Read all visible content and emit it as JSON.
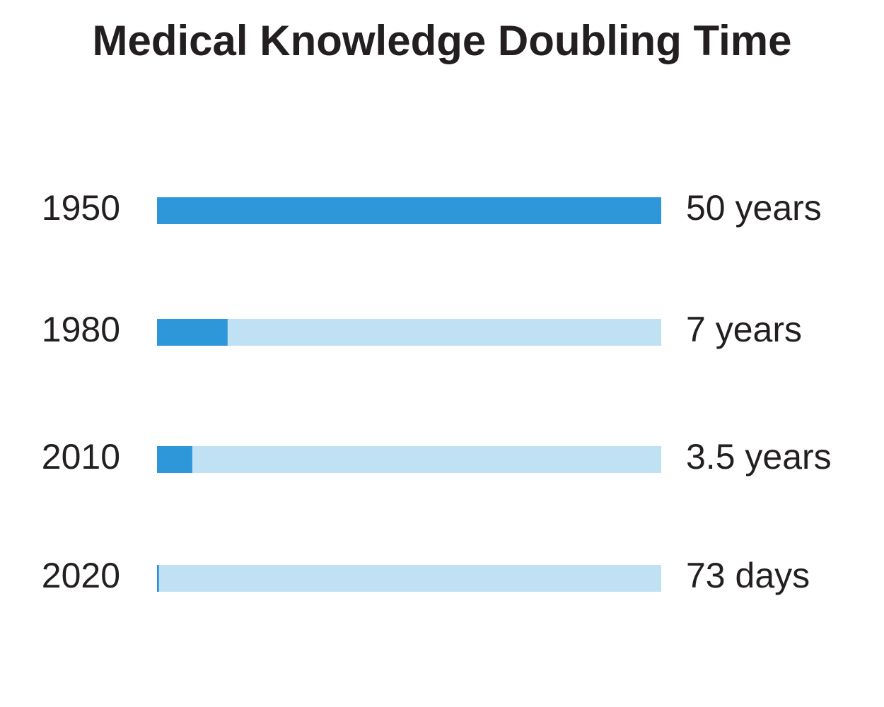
{
  "chart_data": {
    "type": "bar",
    "orientation": "horizontal",
    "title": "Medical Knowledge Doubling Time",
    "categories": [
      "1950",
      "1980",
      "2010",
      "2020"
    ],
    "values": [
      50,
      7,
      3.5,
      0.2
    ],
    "value_labels": [
      "50 years",
      "7 years",
      "3.5 years",
      "73 days"
    ],
    "color": "#2e97da",
    "track_color": "#c0e0f4",
    "xlim": [
      0,
      50
    ],
    "grid": false
  }
}
